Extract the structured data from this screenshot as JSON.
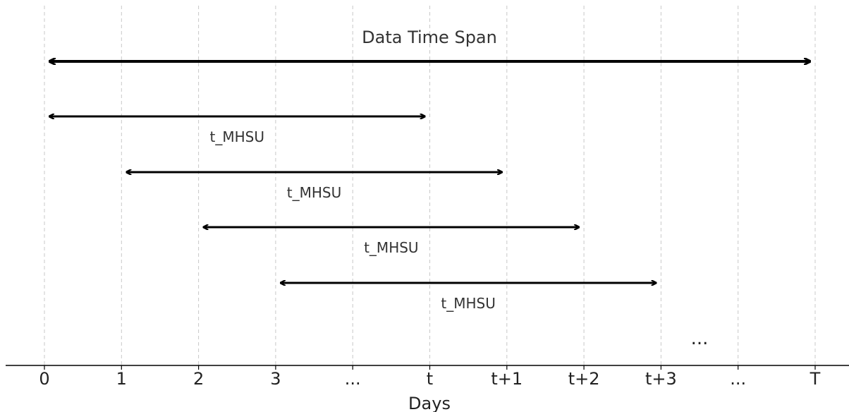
{
  "axis": {
    "label": "Days",
    "ticks": [
      "0",
      "1",
      "2",
      "3",
      "...",
      "t",
      "t+1",
      "t+2",
      "t+3",
      "...",
      "T"
    ]
  },
  "span": {
    "label": "Data Time Span",
    "start": "0",
    "end": "T"
  },
  "windows": [
    {
      "label": "t_MHSU",
      "start": "0",
      "end": "t"
    },
    {
      "label": "t_MHSU",
      "start": "1",
      "end": "t+1"
    },
    {
      "label": "t_MHSU",
      "start": "2",
      "end": "t+2"
    },
    {
      "label": "t_MHSU",
      "start": "3",
      "end": "t+3"
    }
  ],
  "continuation": "...",
  "colors": {
    "arrow": "#000000",
    "grid": "#c8c8c8",
    "text": "#222222"
  }
}
